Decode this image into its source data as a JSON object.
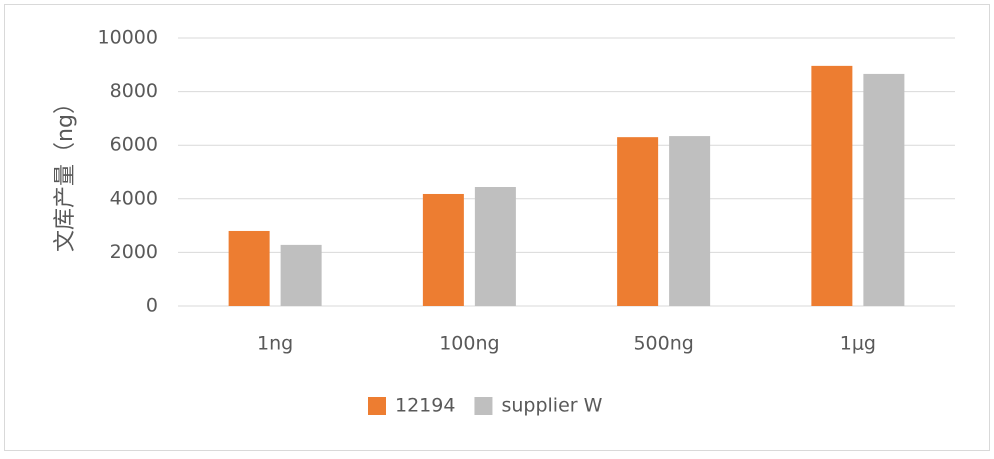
{
  "chart_data": {
    "type": "bar",
    "y_label": "文库产量（ng）",
    "categories": [
      "1ng",
      "100ng",
      "500ng",
      "1μg"
    ],
    "series": [
      {
        "name": "12194",
        "color": "#ed7d31",
        "values": [
          2800,
          4180,
          6300,
          8960
        ]
      },
      {
        "name": "supplier W",
        "color": "#bfbfbf",
        "values": [
          2280,
          4440,
          6340,
          8660
        ]
      }
    ],
    "ylim": [
      0,
      10000
    ],
    "yticks": [
      0,
      2000,
      4000,
      6000,
      8000,
      10000
    ],
    "grid": true,
    "legend": "bottom"
  }
}
